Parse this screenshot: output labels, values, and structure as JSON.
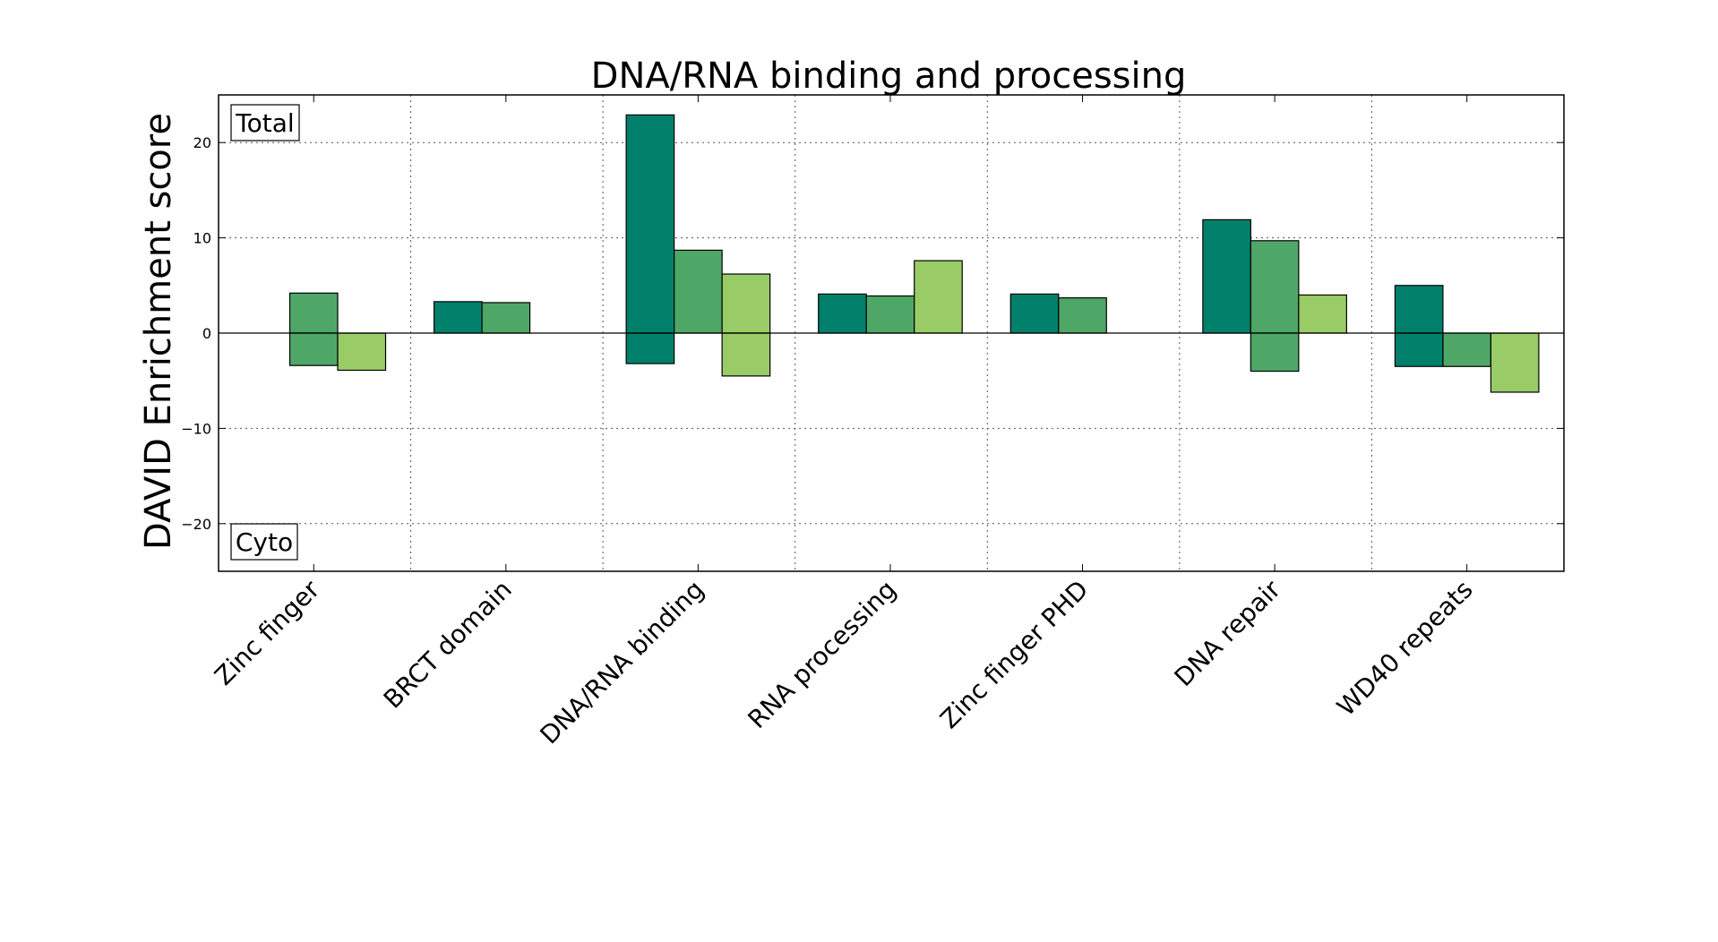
{
  "chart_data": {
    "type": "bar",
    "title": "DNA/RNA binding and processing",
    "xlabel": "",
    "ylabel": "DAVID Enrichment score",
    "ylim": [
      -25,
      25
    ],
    "yticks": [
      -20,
      -10,
      0,
      10,
      20
    ],
    "grid": true,
    "categories": [
      "Zinc finger",
      "BRCT domain",
      "DNA/RNA binding",
      "RNA processing",
      "Zinc finger PHD",
      "DNA repair",
      "WD40 repeats"
    ],
    "panel_labels": {
      "top": "Total",
      "bottom": "Cyto"
    },
    "colors": [
      "#00806a",
      "#4ea767",
      "#99cc66"
    ],
    "series": [
      {
        "positive": [
          0,
          3.3,
          22.9,
          4.1,
          4.1,
          11.9,
          5.0
        ],
        "negative": [
          0,
          0,
          -3.2,
          0,
          0,
          0,
          -3.5
        ]
      },
      {
        "positive": [
          4.2,
          3.2,
          8.7,
          3.9,
          3.7,
          9.7,
          0
        ],
        "negative": [
          -3.4,
          0,
          0,
          0,
          0,
          -4.0,
          -3.5
        ]
      },
      {
        "positive": [
          0,
          0,
          6.2,
          7.6,
          0,
          4.0,
          0
        ],
        "negative": [
          -3.9,
          0,
          -4.5,
          0,
          0,
          0,
          -6.2
        ]
      }
    ]
  }
}
